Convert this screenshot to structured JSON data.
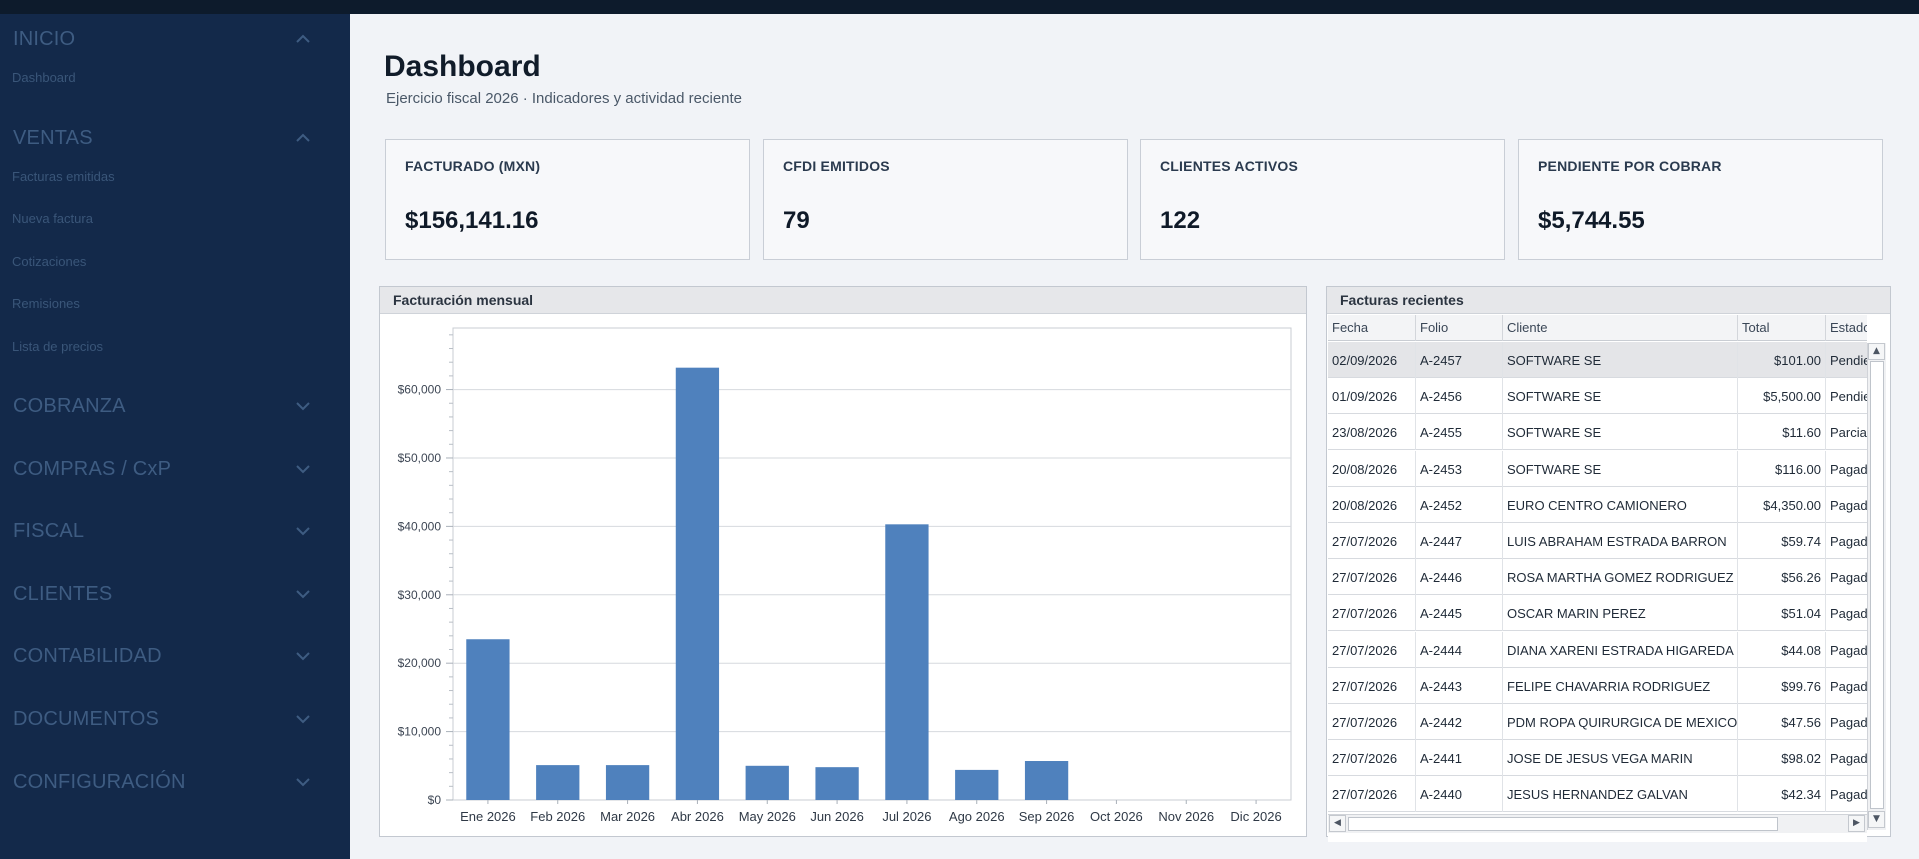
{
  "sidebar": {
    "groups": [
      {
        "label": "INICIO",
        "expanded": true,
        "items": [
          "Dashboard"
        ]
      },
      {
        "label": "VENTAS",
        "expanded": true,
        "items": [
          "Facturas emitidas",
          "Nueva factura",
          "Cotizaciones",
          "Remisiones",
          "Lista de precios"
        ]
      },
      {
        "label": "COBRANZA",
        "expanded": false,
        "items": []
      },
      {
        "label": "COMPRAS / CxP",
        "expanded": false,
        "items": []
      },
      {
        "label": "FISCAL",
        "expanded": false,
        "items": []
      },
      {
        "label": "CLIENTES",
        "expanded": false,
        "items": []
      },
      {
        "label": "CONTABILIDAD",
        "expanded": false,
        "items": []
      },
      {
        "label": "DOCUMENTOS",
        "expanded": false,
        "items": []
      },
      {
        "label": "CONFIGURACIÓN",
        "expanded": false,
        "items": []
      }
    ]
  },
  "header": {
    "title": "Dashboard",
    "subtitle": "Ejercicio fiscal 2026 · Indicadores y actividad reciente"
  },
  "kpis": [
    {
      "label": "FACTURADO (MXN)",
      "value": "$156,141.16"
    },
    {
      "label": "CFDI EMITIDOS",
      "value": "79"
    },
    {
      "label": "CLIENTES ACTIVOS",
      "value": "122"
    },
    {
      "label": "PENDIENTE POR COBRAR",
      "value": "$5,744.55"
    }
  ],
  "chart_panel": {
    "title": "Facturación mensual"
  },
  "chart_data": {
    "type": "bar",
    "title": "",
    "xlabel": "",
    "ylabel": "",
    "categories": [
      "Ene 2026",
      "Feb 2026",
      "Mar 2026",
      "Abr 2026",
      "May 2026",
      "Jun 2026",
      "Jul 2026",
      "Ago 2026",
      "Sep 2026",
      "Oct 2026",
      "Nov 2026",
      "Dic 2026"
    ],
    "values": [
      23500,
      5100,
      5100,
      63200,
      5000,
      4800,
      40300,
      4400,
      5700,
      0,
      0,
      0
    ],
    "ylim": [
      0,
      69000
    ],
    "yticks": [
      0,
      10000,
      20000,
      30000,
      40000,
      50000,
      60000
    ],
    "ytick_labels": [
      "$0",
      "$10,000",
      "$20,000",
      "$30,000",
      "$40,000",
      "$50,000",
      "$60,000"
    ],
    "bar_color": "#4f81bd",
    "grid": true,
    "legend": "none"
  },
  "table_panel": {
    "title": "Facturas recientes",
    "columns": [
      "Fecha",
      "Folio",
      "Cliente",
      "Total",
      "Estado"
    ],
    "rows": [
      [
        "02/09/2026",
        "A-2457",
        "SOFTWARE SE",
        "$101.00",
        "Pendiente"
      ],
      [
        "01/09/2026",
        "A-2456",
        "SOFTWARE SE",
        "$5,500.00",
        "Pendiente"
      ],
      [
        "23/08/2026",
        "A-2455",
        "SOFTWARE SE",
        "$11.60",
        "Parcial"
      ],
      [
        "20/08/2026",
        "A-2453",
        "SOFTWARE SE",
        "$116.00",
        "Pagada"
      ],
      [
        "20/08/2026",
        "A-2452",
        "EURO CENTRO CAMIONERO",
        "$4,350.00",
        "Pagada"
      ],
      [
        "27/07/2026",
        "A-2447",
        "LUIS ABRAHAM ESTRADA BARRON",
        "$59.74",
        "Pagada"
      ],
      [
        "27/07/2026",
        "A-2446",
        "ROSA MARTHA GOMEZ RODRIGUEZ",
        "$56.26",
        "Pagada"
      ],
      [
        "27/07/2026",
        "A-2445",
        "OSCAR MARIN PEREZ",
        "$51.04",
        "Pagada"
      ],
      [
        "27/07/2026",
        "A-2444",
        "DIANA XARENI ESTRADA HIGAREDA",
        "$44.08",
        "Pagada"
      ],
      [
        "27/07/2026",
        "A-2443",
        "FELIPE CHAVARRIA RODRIGUEZ",
        "$99.76",
        "Pagada"
      ],
      [
        "27/07/2026",
        "A-2442",
        "PDM ROPA QUIRURGICA DE MEXICO",
        "$47.56",
        "Pagada"
      ],
      [
        "27/07/2026",
        "A-2441",
        "JOSE DE JESUS VEGA MARIN",
        "$98.02",
        "Pagada"
      ],
      [
        "27/07/2026",
        "A-2440",
        "JESUS HERNANDEZ GALVAN",
        "$42.34",
        "Pagada"
      ]
    ],
    "selected_row": 0
  },
  "scroll_arrows": {
    "up": "▲",
    "down": "▼",
    "left": "◀",
    "right": "▶"
  }
}
